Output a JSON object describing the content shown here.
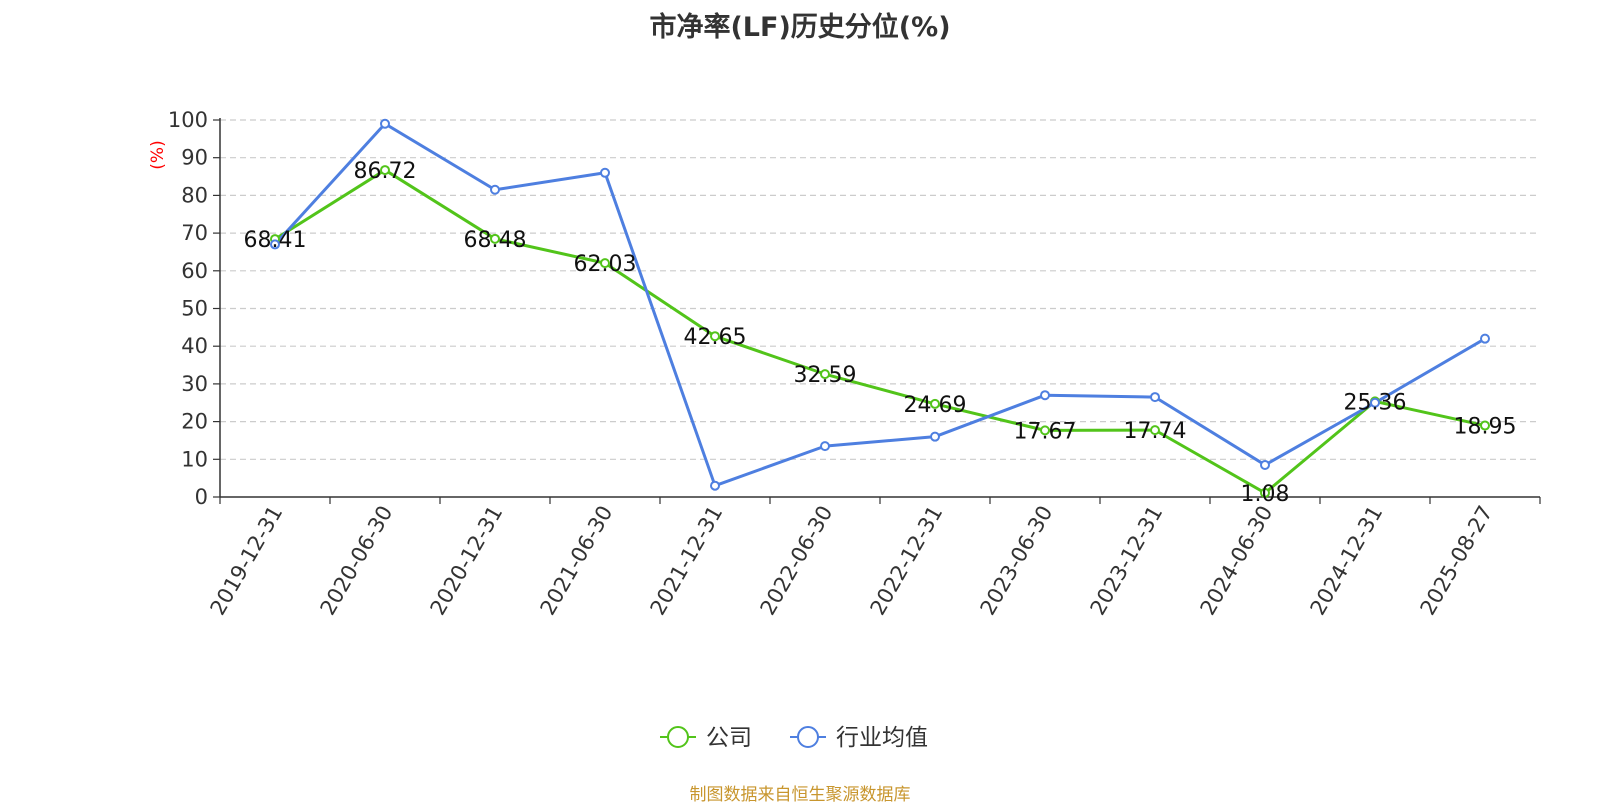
{
  "title": "市净率(LF)历史分位(%)",
  "source_note": "制图数据来自恒生聚源数据库",
  "colors": {
    "company": "#52c41a",
    "industry": "#4e7fe0",
    "unit": "#ff0000",
    "grid": "#cccccc",
    "axis": "#333333"
  },
  "chart_data": {
    "type": "line",
    "title": "市净率(LF)历史分位(%)",
    "ylabel": "(%)",
    "xlabel": "",
    "ylim": [
      0,
      100
    ],
    "yticks": [
      0,
      10,
      20,
      30,
      40,
      50,
      60,
      70,
      80,
      90,
      100
    ],
    "grid": true,
    "legend_position": "bottom-center",
    "categories": [
      "2019-12-31",
      "2020-06-30",
      "2020-12-31",
      "2021-06-30",
      "2021-12-31",
      "2022-06-30",
      "2022-12-31",
      "2023-06-30",
      "2023-12-31",
      "2024-06-30",
      "2024-12-31",
      "2025-08-27"
    ],
    "series": [
      {
        "name": "公司",
        "color": "#52c41a",
        "values": [
          68.41,
          86.72,
          68.48,
          62.03,
          42.65,
          32.59,
          24.69,
          17.67,
          17.74,
          1.08,
          25.36,
          18.95
        ],
        "labels": [
          "68.41",
          "86.72",
          "68.48",
          "62.03",
          "42.65",
          "32.59",
          "24.69",
          "17.67",
          "17.74",
          "1.08",
          "25.36",
          "18.95"
        ]
      },
      {
        "name": "行业均值",
        "color": "#4e7fe0",
        "values": [
          67.0,
          99.0,
          81.5,
          86.0,
          3.0,
          13.5,
          16.0,
          27.0,
          26.5,
          8.5,
          25.0,
          42.0
        ]
      }
    ]
  }
}
